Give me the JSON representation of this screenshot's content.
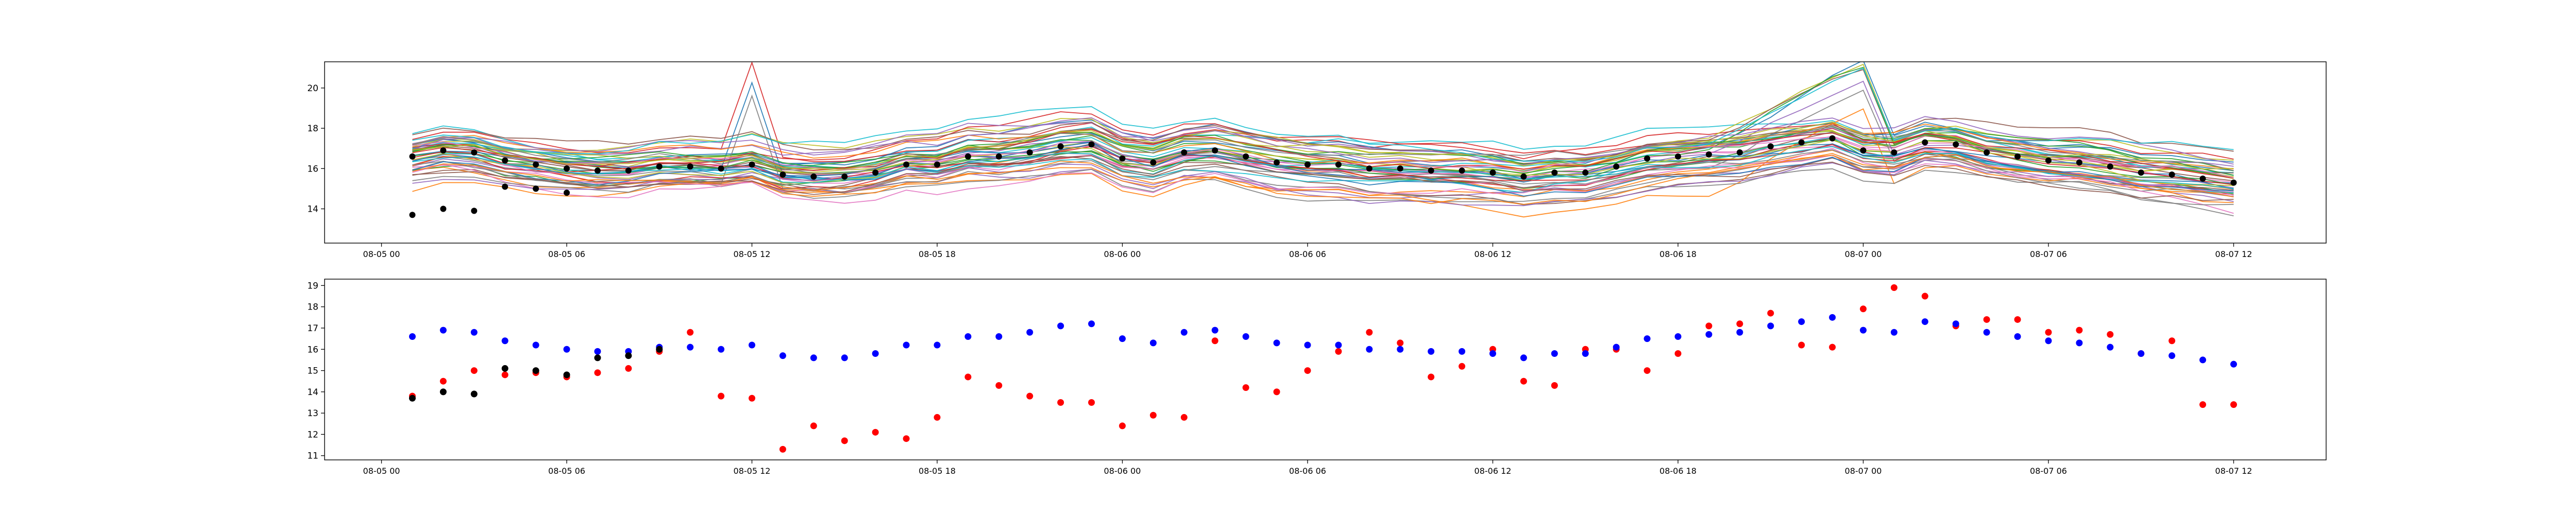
{
  "chart_data": [
    {
      "type": "line",
      "name": "ensemble",
      "title": "",
      "xlabel": "",
      "ylabel": "",
      "x_start": "2024-08-05T00:00",
      "x_end": "2024-08-07T14:00",
      "ylim": [
        12.3,
        21.3
      ],
      "x_ticks": [
        {
          "label": "08-05 00",
          "t": 0
        },
        {
          "label": "08-05 06",
          "t": 6
        },
        {
          "label": "08-05 12",
          "t": 12
        },
        {
          "label": "08-05 18",
          "t": 18
        },
        {
          "label": "08-06 00",
          "t": 24
        },
        {
          "label": "08-06 06",
          "t": 30
        },
        {
          "label": "08-06 12",
          "t": 36
        },
        {
          "label": "08-06 18",
          "t": 42
        },
        {
          "label": "08-07 00",
          "t": 48
        },
        {
          "label": "08-07 06",
          "t": 54
        },
        {
          "label": "08-07 12",
          "t": 60
        }
      ],
      "y_ticks": [
        14,
        16,
        18,
        20
      ],
      "member_time_range": [
        1,
        60
      ],
      "member_count": 50,
      "member_spread": "lines",
      "member_colors": [
        "#1f77b4",
        "#ff7f0e",
        "#2ca02c",
        "#d62728",
        "#9467bd",
        "#8c564b",
        "#e377c2",
        "#7f7f7f",
        "#bcbd22",
        "#17becf"
      ],
      "ensemble_mean": [
        {
          "t": 1,
          "v": 16.6
        },
        {
          "t": 2,
          "v": 16.9
        },
        {
          "t": 3,
          "v": 16.8
        },
        {
          "t": 4,
          "v": 16.4
        },
        {
          "t": 5,
          "v": 16.2
        },
        {
          "t": 6,
          "v": 16.0
        },
        {
          "t": 7,
          "v": 15.9
        },
        {
          "t": 8,
          "v": 15.9
        },
        {
          "t": 9,
          "v": 16.1
        },
        {
          "t": 10,
          "v": 16.1
        },
        {
          "t": 11,
          "v": 16.0
        },
        {
          "t": 12,
          "v": 16.2
        },
        {
          "t": 13,
          "v": 15.7
        },
        {
          "t": 14,
          "v": 15.6
        },
        {
          "t": 15,
          "v": 15.6
        },
        {
          "t": 16,
          "v": 15.8
        },
        {
          "t": 17,
          "v": 16.2
        },
        {
          "t": 18,
          "v": 16.2
        },
        {
          "t": 19,
          "v": 16.6
        },
        {
          "t": 20,
          "v": 16.6
        },
        {
          "t": 21,
          "v": 16.8
        },
        {
          "t": 22,
          "v": 17.1
        },
        {
          "t": 23,
          "v": 17.2
        },
        {
          "t": 24,
          "v": 16.5
        },
        {
          "t": 25,
          "v": 16.3
        },
        {
          "t": 26,
          "v": 16.8
        },
        {
          "t": 27,
          "v": 16.9
        },
        {
          "t": 28,
          "v": 16.6
        },
        {
          "t": 29,
          "v": 16.3
        },
        {
          "t": 30,
          "v": 16.2
        },
        {
          "t": 31,
          "v": 16.2
        },
        {
          "t": 32,
          "v": 16.0
        },
        {
          "t": 33,
          "v": 16.0
        },
        {
          "t": 34,
          "v": 15.9
        },
        {
          "t": 35,
          "v": 15.9
        },
        {
          "t": 36,
          "v": 15.8
        },
        {
          "t": 37,
          "v": 15.6
        },
        {
          "t": 38,
          "v": 15.8
        },
        {
          "t": 39,
          "v": 15.8
        },
        {
          "t": 40,
          "v": 16.1
        },
        {
          "t": 41,
          "v": 16.5
        },
        {
          "t": 42,
          "v": 16.6
        },
        {
          "t": 43,
          "v": 16.7
        },
        {
          "t": 44,
          "v": 16.8
        },
        {
          "t": 45,
          "v": 17.1
        },
        {
          "t": 46,
          "v": 17.3
        },
        {
          "t": 47,
          "v": 17.5
        },
        {
          "t": 48,
          "v": 16.9
        },
        {
          "t": 49,
          "v": 16.8
        },
        {
          "t": 50,
          "v": 17.3
        },
        {
          "t": 51,
          "v": 17.2
        },
        {
          "t": 52,
          "v": 16.8
        },
        {
          "t": 53,
          "v": 16.6
        },
        {
          "t": 54,
          "v": 16.4
        },
        {
          "t": 55,
          "v": 16.3
        },
        {
          "t": 56,
          "v": 16.1
        },
        {
          "t": 57,
          "v": 15.8
        },
        {
          "t": 58,
          "v": 15.7
        },
        {
          "t": 59,
          "v": 15.5
        },
        {
          "t": 60,
          "v": 15.3
        }
      ],
      "observations": [
        {
          "t": 1,
          "v": 13.7
        },
        {
          "t": 2,
          "v": 14.0
        },
        {
          "t": 3,
          "v": 13.9
        },
        {
          "t": 4,
          "v": 15.1
        },
        {
          "t": 5,
          "v": 15.0
        },
        {
          "t": 6,
          "v": 14.8
        }
      ]
    },
    {
      "type": "scatter",
      "name": "comparison",
      "title": "",
      "xlabel": "",
      "ylabel": "",
      "x_start": "2024-08-05T00:00",
      "x_end": "2024-08-07T14:00",
      "ylim": [
        10.8,
        19.3
      ],
      "x_ticks": [
        {
          "label": "08-05 00",
          "t": 0
        },
        {
          "label": "08-05 06",
          "t": 6
        },
        {
          "label": "08-05 12",
          "t": 12
        },
        {
          "label": "08-05 18",
          "t": 18
        },
        {
          "label": "08-06 00",
          "t": 24
        },
        {
          "label": "08-06 06",
          "t": 30
        },
        {
          "label": "08-06 12",
          "t": 36
        },
        {
          "label": "08-06 18",
          "t": 42
        },
        {
          "label": "08-07 00",
          "t": 48
        },
        {
          "label": "08-07 06",
          "t": 54
        },
        {
          "label": "08-07 12",
          "t": 60
        }
      ],
      "y_ticks": [
        11,
        12,
        13,
        14,
        15,
        16,
        17,
        18,
        19
      ],
      "series": [
        {
          "name": "red",
          "color": "#ff0000",
          "points": [
            {
              "t": 1,
              "v": 13.8
            },
            {
              "t": 2,
              "v": 14.5
            },
            {
              "t": 3,
              "v": 15.0
            },
            {
              "t": 4,
              "v": 14.8
            },
            {
              "t": 5,
              "v": 14.9
            },
            {
              "t": 6,
              "v": 14.7
            },
            {
              "t": 7,
              "v": 14.9
            },
            {
              "t": 8,
              "v": 15.1
            },
            {
              "t": 9,
              "v": 15.9
            },
            {
              "t": 10,
              "v": 16.8
            },
            {
              "t": 11,
              "v": 13.8
            },
            {
              "t": 12,
              "v": 13.7
            },
            {
              "t": 13,
              "v": 11.3
            },
            {
              "t": 14,
              "v": 12.4
            },
            {
              "t": 15,
              "v": 11.7
            },
            {
              "t": 16,
              "v": 12.1
            },
            {
              "t": 17,
              "v": 11.8
            },
            {
              "t": 18,
              "v": 12.8
            },
            {
              "t": 19,
              "v": 14.7
            },
            {
              "t": 20,
              "v": 14.3
            },
            {
              "t": 21,
              "v": 13.8
            },
            {
              "t": 22,
              "v": 13.5
            },
            {
              "t": 23,
              "v": 13.5
            },
            {
              "t": 24,
              "v": 12.4
            },
            {
              "t": 25,
              "v": 12.9
            },
            {
              "t": 26,
              "v": 12.8
            },
            {
              "t": 27,
              "v": 16.4
            },
            {
              "t": 28,
              "v": 14.2
            },
            {
              "t": 29,
              "v": 14.0
            },
            {
              "t": 30,
              "v": 15.0
            },
            {
              "t": 31,
              "v": 15.9
            },
            {
              "t": 32,
              "v": 16.8
            },
            {
              "t": 33,
              "v": 16.3
            },
            {
              "t": 34,
              "v": 14.7
            },
            {
              "t": 35,
              "v": 15.2
            },
            {
              "t": 36,
              "v": 16.0
            },
            {
              "t": 37,
              "v": 14.5
            },
            {
              "t": 38,
              "v": 14.3
            },
            {
              "t": 39,
              "v": 16.0
            },
            {
              "t": 40,
              "v": 16.0
            },
            {
              "t": 41,
              "v": 15.0
            },
            {
              "t": 42,
              "v": 15.8
            },
            {
              "t": 43,
              "v": 17.1
            },
            {
              "t": 44,
              "v": 17.2
            },
            {
              "t": 45,
              "v": 17.7
            },
            {
              "t": 46,
              "v": 16.2
            },
            {
              "t": 47,
              "v": 16.1
            },
            {
              "t": 48,
              "v": 17.9
            },
            {
              "t": 49,
              "v": 18.9
            },
            {
              "t": 50,
              "v": 18.5
            },
            {
              "t": 51,
              "v": 17.1
            },
            {
              "t": 52,
              "v": 17.4
            },
            {
              "t": 53,
              "v": 17.4
            },
            {
              "t": 54,
              "v": 16.8
            },
            {
              "t": 55,
              "v": 16.9
            },
            {
              "t": 56,
              "v": 16.7
            },
            {
              "t": 57,
              "v": 15.8
            },
            {
              "t": 58,
              "v": 16.4
            },
            {
              "t": 59,
              "v": 13.4
            },
            {
              "t": 60,
              "v": 13.4
            }
          ]
        },
        {
          "name": "blue",
          "color": "#0000ff",
          "points": [
            {
              "t": 1,
              "v": 16.6
            },
            {
              "t": 2,
              "v": 16.9
            },
            {
              "t": 3,
              "v": 16.8
            },
            {
              "t": 4,
              "v": 16.4
            },
            {
              "t": 5,
              "v": 16.2
            },
            {
              "t": 6,
              "v": 16.0
            },
            {
              "t": 7,
              "v": 15.9
            },
            {
              "t": 8,
              "v": 15.9
            },
            {
              "t": 9,
              "v": 16.1
            },
            {
              "t": 10,
              "v": 16.1
            },
            {
              "t": 11,
              "v": 16.0
            },
            {
              "t": 12,
              "v": 16.2
            },
            {
              "t": 13,
              "v": 15.7
            },
            {
              "t": 14,
              "v": 15.6
            },
            {
              "t": 15,
              "v": 15.6
            },
            {
              "t": 16,
              "v": 15.8
            },
            {
              "t": 17,
              "v": 16.2
            },
            {
              "t": 18,
              "v": 16.2
            },
            {
              "t": 19,
              "v": 16.6
            },
            {
              "t": 20,
              "v": 16.6
            },
            {
              "t": 21,
              "v": 16.8
            },
            {
              "t": 22,
              "v": 17.1
            },
            {
              "t": 23,
              "v": 17.2
            },
            {
              "t": 24,
              "v": 16.5
            },
            {
              "t": 25,
              "v": 16.3
            },
            {
              "t": 26,
              "v": 16.8
            },
            {
              "t": 27,
              "v": 16.9
            },
            {
              "t": 28,
              "v": 16.6
            },
            {
              "t": 29,
              "v": 16.3
            },
            {
              "t": 30,
              "v": 16.2
            },
            {
              "t": 31,
              "v": 16.2
            },
            {
              "t": 32,
              "v": 16.0
            },
            {
              "t": 33,
              "v": 16.0
            },
            {
              "t": 34,
              "v": 15.9
            },
            {
              "t": 35,
              "v": 15.9
            },
            {
              "t": 36,
              "v": 15.8
            },
            {
              "t": 37,
              "v": 15.6
            },
            {
              "t": 38,
              "v": 15.8
            },
            {
              "t": 39,
              "v": 15.8
            },
            {
              "t": 40,
              "v": 16.1
            },
            {
              "t": 41,
              "v": 16.5
            },
            {
              "t": 42,
              "v": 16.6
            },
            {
              "t": 43,
              "v": 16.7
            },
            {
              "t": 44,
              "v": 16.8
            },
            {
              "t": 45,
              "v": 17.1
            },
            {
              "t": 46,
              "v": 17.3
            },
            {
              "t": 47,
              "v": 17.5
            },
            {
              "t": 48,
              "v": 16.9
            },
            {
              "t": 49,
              "v": 16.8
            },
            {
              "t": 50,
              "v": 17.3
            },
            {
              "t": 51,
              "v": 17.2
            },
            {
              "t": 52,
              "v": 16.8
            },
            {
              "t": 53,
              "v": 16.6
            },
            {
              "t": 54,
              "v": 16.4
            },
            {
              "t": 55,
              "v": 16.3
            },
            {
              "t": 56,
              "v": 16.1
            },
            {
              "t": 57,
              "v": 15.8
            },
            {
              "t": 58,
              "v": 15.7
            },
            {
              "t": 59,
              "v": 15.5
            },
            {
              "t": 60,
              "v": 15.3
            }
          ]
        },
        {
          "name": "black",
          "color": "#000000",
          "points": [
            {
              "t": 1,
              "v": 13.7
            },
            {
              "t": 2,
              "v": 14.0
            },
            {
              "t": 3,
              "v": 13.9
            },
            {
              "t": 4,
              "v": 15.1
            },
            {
              "t": 5,
              "v": 15.0
            },
            {
              "t": 6,
              "v": 14.8
            },
            {
              "t": 7,
              "v": 15.6
            },
            {
              "t": 8,
              "v": 15.7
            },
            {
              "t": 9,
              "v": 16.0
            }
          ]
        }
      ]
    }
  ]
}
